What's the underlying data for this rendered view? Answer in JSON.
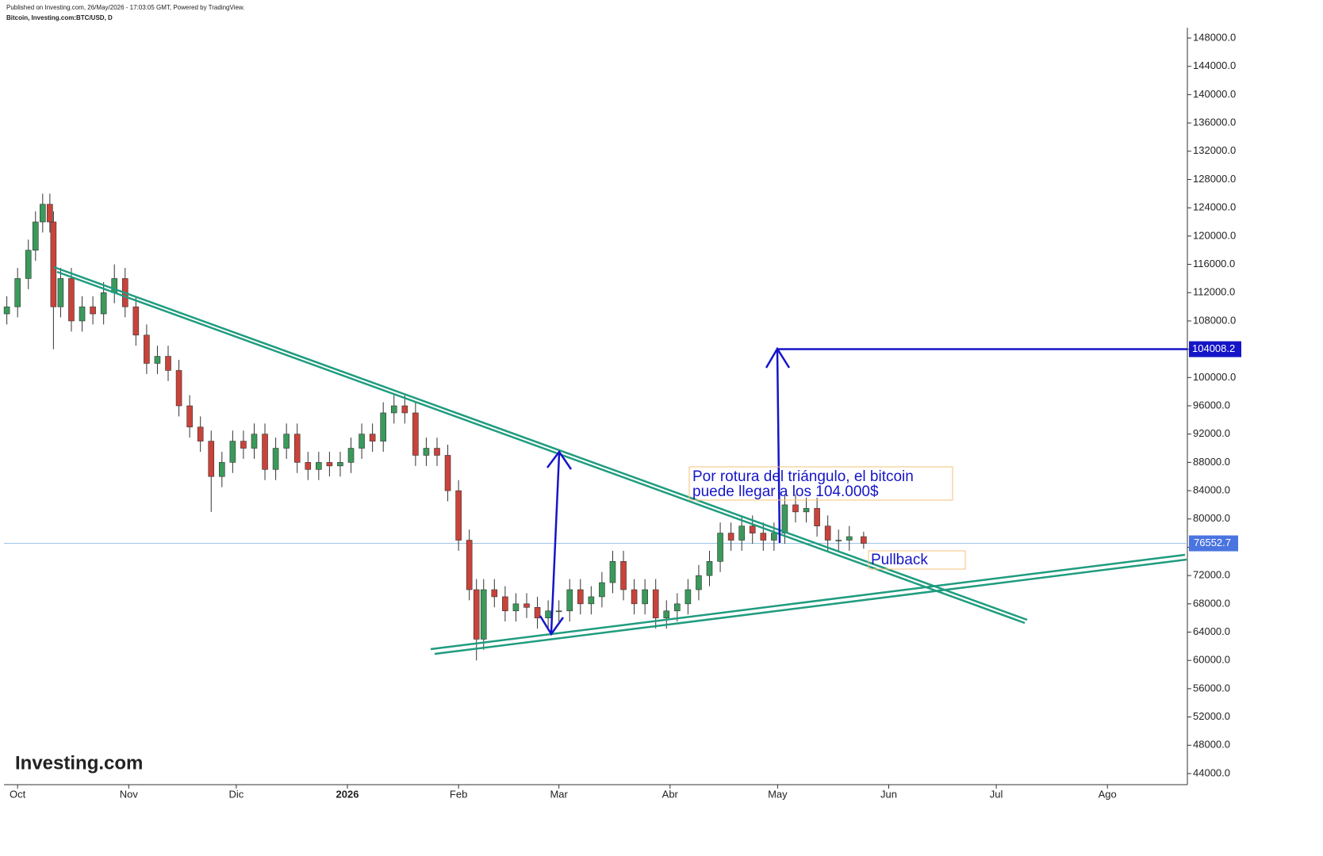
{
  "header": [
    "Published on Investing.com, 26/May/2026 - 17:03:05 GMT, Powered by TradingView.",
    "Bitcoin, Investing.com:BTC/USD, D"
  ],
  "logo": "Investing.com",
  "chart_data": {
    "type": "candlestick",
    "up_color": "#3a9a5b",
    "down_color": "#c9433a",
    "xlim": [
      -3.8,
      326.3
    ],
    "xticks": [
      {
        "value": 0,
        "label": "Oct"
      },
      {
        "value": 31,
        "label": "Nov"
      },
      {
        "value": 61,
        "label": "Dic"
      },
      {
        "value": 92,
        "label": "2026"
      },
      {
        "value": 123,
        "label": "Feb"
      },
      {
        "value": 151,
        "label": "Mar"
      },
      {
        "value": 182,
        "label": "Abr"
      },
      {
        "value": 212,
        "label": "May"
      },
      {
        "value": 243,
        "label": "Jun"
      },
      {
        "value": 273,
        "label": "Jul"
      },
      {
        "value": 304,
        "label": "Ago"
      }
    ],
    "ylim": [
      42430,
      149460
    ],
    "yticks": [
      {
        "value": 44000,
        "label": "44000.0"
      },
      {
        "value": 48000,
        "label": "48000.0"
      },
      {
        "value": 52000,
        "label": "52000.0"
      },
      {
        "value": 56000,
        "label": "56000.0"
      },
      {
        "value": 60000,
        "label": "60000.0"
      },
      {
        "value": 64000,
        "label": "64000.0"
      },
      {
        "value": 68000,
        "label": "68000.0"
      },
      {
        "value": 72000,
        "label": "72000.0"
      },
      {
        "value": 76000,
        "label": "76000.0"
      },
      {
        "value": 80000,
        "label": "80000.0"
      },
      {
        "value": 84000,
        "label": "84000.0"
      },
      {
        "value": 88000,
        "label": "88000.0"
      },
      {
        "value": 92000,
        "label": "92000.0"
      },
      {
        "value": 96000,
        "label": "96000.0"
      },
      {
        "value": 100000,
        "label": "100000.0"
      },
      {
        "value": 104000,
        "label": "104000.0"
      },
      {
        "value": 108000,
        "label": "108000.0"
      },
      {
        "value": 112000,
        "label": "112000.0"
      },
      {
        "value": 116000,
        "label": "116000.0"
      },
      {
        "value": 120000,
        "label": "120000.0"
      },
      {
        "value": 124000,
        "label": "124000.0"
      },
      {
        "value": 128000,
        "label": "128000.0"
      },
      {
        "value": 132000,
        "label": "132000.0"
      },
      {
        "value": 136000,
        "label": "136000.0"
      },
      {
        "value": 140000,
        "label": "140000.0"
      },
      {
        "value": 144000,
        "label": "144000.0"
      },
      {
        "value": 148000,
        "label": "148000.0"
      }
    ],
    "x": [
      -3,
      0,
      3,
      5,
      7,
      9,
      10,
      12,
      15,
      18,
      21,
      24,
      27,
      30,
      33,
      36,
      39,
      42,
      45,
      48,
      51,
      54,
      57,
      60,
      63,
      66,
      69,
      72,
      75,
      78,
      81,
      84,
      87,
      90,
      93,
      96,
      99,
      102,
      105,
      108,
      111,
      114,
      117,
      120,
      123,
      126,
      128,
      130,
      133,
      136,
      139,
      142,
      145,
      148,
      151,
      154,
      157,
      160,
      163,
      166,
      169,
      172,
      175,
      178,
      181,
      184,
      187,
      190,
      193,
      196,
      199,
      202,
      205,
      208,
      211,
      214,
      217,
      220,
      223,
      226,
      229,
      232,
      236
    ],
    "open": [
      109000,
      110000,
      114000,
      118000,
      122000,
      124500,
      122000,
      110000,
      114000,
      108000,
      110000,
      109000,
      112000,
      114000,
      110000,
      106000,
      102000,
      103000,
      101000,
      96000,
      93000,
      91000,
      86000,
      88000,
      91000,
      90000,
      92000,
      87000,
      90000,
      92000,
      88000,
      87000,
      88000,
      87500,
      88000,
      90000,
      92000,
      91000,
      95000,
      96000,
      95000,
      89000,
      90000,
      89000,
      84000,
      77000,
      70000,
      63000,
      70000,
      69000,
      67000,
      68000,
      67500,
      66000,
      67000,
      67000,
      70000,
      68000,
      69000,
      71000,
      74000,
      70000,
      68000,
      70000,
      66000,
      67000,
      68000,
      70000,
      72000,
      74000,
      78000,
      77000,
      79000,
      78000,
      77000,
      78000,
      82000,
      81000,
      81500,
      79000,
      77000,
      77000,
      77500
    ],
    "high": [
      111500,
      115500,
      119500,
      123500,
      126000,
      126000,
      123500,
      115500,
      115500,
      111500,
      111500,
      113500,
      116000,
      115500,
      111500,
      107500,
      104500,
      104500,
      102500,
      97500,
      94500,
      92500,
      89500,
      92500,
      92500,
      93500,
      93500,
      91500,
      93500,
      93500,
      89500,
      89500,
      89500,
      89500,
      91500,
      93500,
      93500,
      96500,
      97500,
      97500,
      96500,
      91500,
      91500,
      90500,
      85500,
      78500,
      71500,
      71500,
      71500,
      70500,
      69500,
      69500,
      69000,
      68500,
      68500,
      71500,
      71500,
      70500,
      72500,
      75500,
      75500,
      71500,
      71500,
      71500,
      68500,
      69500,
      71500,
      73500,
      75500,
      79500,
      79500,
      80500,
      80500,
      79500,
      79500,
      83500,
      83500,
      83000,
      83000,
      80500,
      78500,
      79000,
      78200
    ],
    "low": [
      107500,
      108500,
      112500,
      116500,
      120500,
      120500,
      104000,
      108500,
      106500,
      106500,
      107500,
      107500,
      110500,
      108500,
      104500,
      100500,
      100500,
      99500,
      94500,
      91500,
      89500,
      81000,
      84500,
      86500,
      88500,
      88500,
      85500,
      85500,
      88500,
      86500,
      85500,
      85500,
      86000,
      86000,
      86500,
      88500,
      89500,
      89500,
      93500,
      93500,
      87500,
      87500,
      87500,
      82500,
      75500,
      68500,
      60000,
      61500,
      67500,
      65500,
      65500,
      66000,
      64500,
      64500,
      65500,
      65500,
      66500,
      66500,
      67500,
      69500,
      68500,
      66500,
      66500,
      64500,
      64500,
      65500,
      66500,
      68500,
      70500,
      72500,
      75500,
      75500,
      76500,
      75500,
      75500,
      76500,
      79500,
      79500,
      77500,
      75500,
      75500,
      75500,
      75800
    ],
    "close": [
      110000,
      114000,
      118000,
      122000,
      124500,
      122000,
      110000,
      114000,
      108000,
      110000,
      109000,
      112000,
      114000,
      110000,
      106000,
      102000,
      103000,
      101000,
      96000,
      93000,
      91000,
      86000,
      88000,
      91000,
      90000,
      92000,
      87000,
      90000,
      92000,
      88000,
      87000,
      88000,
      87500,
      88000,
      90000,
      92000,
      91000,
      95000,
      96000,
      95000,
      89000,
      90000,
      89000,
      84000,
      77000,
      70000,
      63000,
      70000,
      69000,
      67000,
      68000,
      67500,
      66000,
      67000,
      67000,
      70000,
      68000,
      69000,
      71000,
      74000,
      70000,
      68000,
      70000,
      66000,
      67000,
      68000,
      70000,
      72000,
      74000,
      78000,
      77000,
      79000,
      78000,
      77000,
      78000,
      82000,
      81000,
      81500,
      79000,
      77000,
      77000,
      77500,
      76552.7
    ],
    "target_level": 104008.2,
    "annotations": [
      "Por rotura del triángulo, el bitcoin",
      "puede llegar a los 104.000$",
      "Pullback"
    ]
  }
}
